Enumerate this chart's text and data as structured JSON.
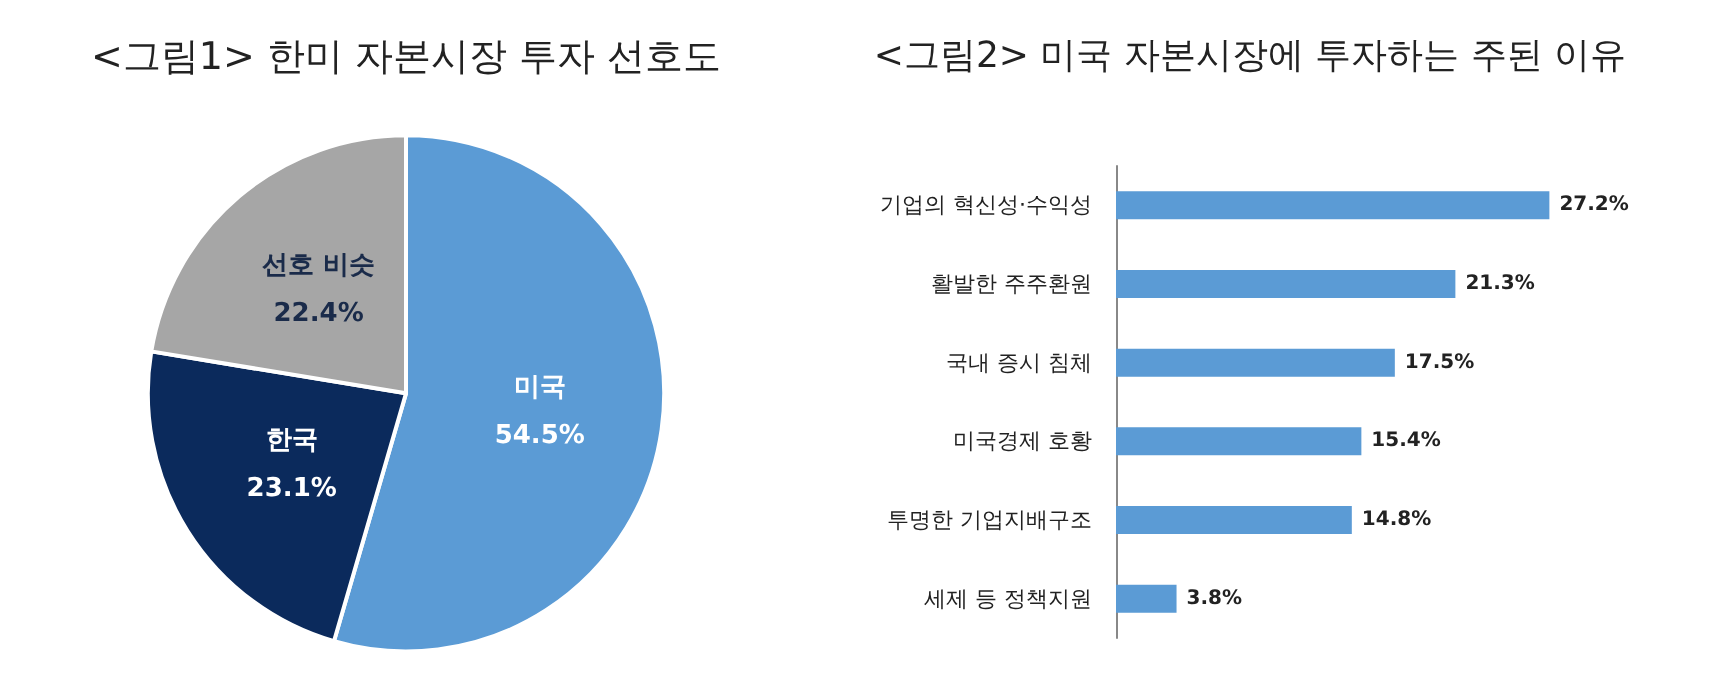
{
  "chart_data": [
    {
      "type": "pie",
      "title": "<그림1> 한미 자본시장 투자 선호도",
      "categories": [
        "미국",
        "한국",
        "선호 비슷"
      ],
      "values": [
        54.5,
        23.1,
        22.4
      ],
      "colors": [
        "#5b9bd5",
        "#0b2a5c",
        "#a6a6a6"
      ],
      "value_labels": [
        "54.5%",
        "23.1%",
        "22.4%"
      ],
      "legend": false
    },
    {
      "type": "bar",
      "orientation": "horizontal",
      "title": "<그림2> 미국 자본시장에 투자하는 주된 이유",
      "categories": [
        "기업의 혁신성·수익성",
        "활발한 주주환원",
        "국내 증시 침체",
        "미국경제 호황",
        "투명한 기업지배구조",
        "세제 등 정책지원"
      ],
      "values": [
        27.2,
        21.3,
        17.5,
        15.4,
        14.8,
        3.8
      ],
      "color": "#5b9bd5",
      "value_labels": [
        "27.2%",
        "21.3%",
        "17.5%",
        "15.4%",
        "14.8%",
        "3.8%"
      ],
      "tick_labels": "y"
    }
  ]
}
